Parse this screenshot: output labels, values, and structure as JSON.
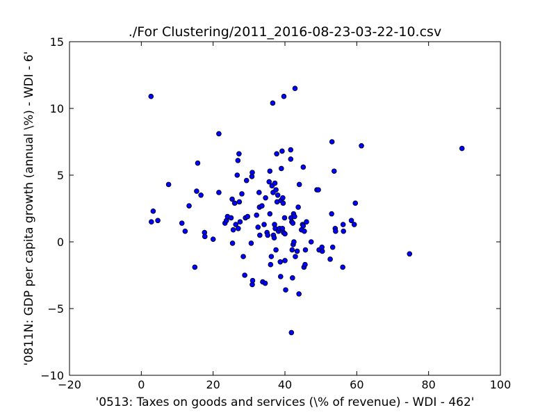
{
  "chart_data": {
    "type": "scatter",
    "title": "./For Clustering/2011_2016-08-23-03-22-10.csv",
    "xlabel": "'0513: Taxes on goods and services  (\\% of revenue) - WDI - 462'",
    "ylabel": "'0811N: GDP per capita growth  (annual \\%) - WDI - 6'",
    "xlim": [
      -20,
      100
    ],
    "ylim": [
      -10,
      15
    ],
    "xticks": [
      -20,
      0,
      20,
      40,
      60,
      80,
      100
    ],
    "xtick_labels": [
      "−20",
      "0",
      "20",
      "40",
      "60",
      "80",
      "100"
    ],
    "yticks": [
      -10,
      -5,
      0,
      5,
      10,
      15
    ],
    "ytick_labels": [
      "−10",
      "−5",
      "0",
      "5",
      "10",
      "15"
    ],
    "grid": false,
    "marker_color": "#0000ff",
    "marker_edge": "#000000",
    "points": [
      [
        2.7,
        10.9
      ],
      [
        2.8,
        1.5
      ],
      [
        3.3,
        2.3
      ],
      [
        4.6,
        1.6
      ],
      [
        7.6,
        4.3
      ],
      [
        11.3,
        1.4
      ],
      [
        12.2,
        0.8
      ],
      [
        13.3,
        2.7
      ],
      [
        14.9,
        -1.9
      ],
      [
        15.4,
        3.8
      ],
      [
        15.7,
        5.9
      ],
      [
        16.6,
        3.5
      ],
      [
        17.6,
        0.7
      ],
      [
        17.7,
        0.4
      ],
      [
        20.0,
        0.2
      ],
      [
        21.6,
        8.1
      ],
      [
        21.6,
        3.7
      ],
      [
        23.3,
        1.4
      ],
      [
        23.7,
        1.6
      ],
      [
        24.0,
        1.9
      ],
      [
        25.0,
        1.8
      ],
      [
        25.3,
        3.2
      ],
      [
        25.4,
        -0.1
      ],
      [
        25.6,
        0.9
      ],
      [
        26.0,
        2.9
      ],
      [
        26.3,
        1.3
      ],
      [
        26.7,
        5.0
      ],
      [
        26.9,
        6.1
      ],
      [
        27.0,
        1.0
      ],
      [
        27.2,
        6.6
      ],
      [
        27.3,
        3.0
      ],
      [
        27.5,
        1.5
      ],
      [
        28.0,
        3.6
      ],
      [
        28.4,
        -1.1
      ],
      [
        28.8,
        -2.5
      ],
      [
        29.0,
        1.8
      ],
      [
        29.3,
        4.6
      ],
      [
        29.6,
        1.9
      ],
      [
        30.6,
        -0.1
      ],
      [
        30.8,
        4.9
      ],
      [
        30.9,
        5.2
      ],
      [
        30.9,
        -3.2
      ],
      [
        31.0,
        -2.9
      ],
      [
        32.1,
        2.0
      ],
      [
        32.5,
        1.1
      ],
      [
        32.8,
        3.7
      ],
      [
        32.9,
        2.6
      ],
      [
        33.0,
        0.5
      ],
      [
        33.6,
        2.7
      ],
      [
        33.8,
        -3.0
      ],
      [
        34.2,
        1.3
      ],
      [
        34.5,
        -3.1
      ],
      [
        34.6,
        3.3
      ],
      [
        35.0,
        0.7
      ],
      [
        35.2,
        0.5
      ],
      [
        35.6,
        4.5
      ],
      [
        35.8,
        5.3
      ],
      [
        35.8,
        2.1
      ],
      [
        36.0,
        -1.7
      ],
      [
        36.2,
        -1.1
      ],
      [
        36.4,
        4.2
      ],
      [
        36.6,
        10.4
      ],
      [
        36.7,
        3.7
      ],
      [
        36.8,
        0.5
      ],
      [
        37.0,
        0.3
      ],
      [
        37.1,
        1.3
      ],
      [
        37.2,
        4.4
      ],
      [
        37.3,
        1.0
      ],
      [
        37.5,
        3.9
      ],
      [
        37.5,
        -0.6
      ],
      [
        37.7,
        6.6
      ],
      [
        37.8,
        3.0
      ],
      [
        38.0,
        3.5
      ],
      [
        38.2,
        0.8
      ],
      [
        38.5,
        1.0
      ],
      [
        38.7,
        -1.5
      ],
      [
        38.8,
        -2.6
      ],
      [
        38.9,
        3.1
      ],
      [
        39.0,
        5.5
      ],
      [
        39.2,
        6.8
      ],
      [
        39.3,
        1.0
      ],
      [
        39.4,
        3.3
      ],
      [
        39.5,
        2.9
      ],
      [
        39.6,
        0.7
      ],
      [
        39.7,
        10.9
      ],
      [
        39.9,
        1.8
      ],
      [
        40.0,
        -1.4
      ],
      [
        40.0,
        0.6
      ],
      [
        40.2,
        -3.6
      ],
      [
        41.6,
        6.9
      ],
      [
        41.6,
        6.2
      ],
      [
        41.7,
        1.8
      ],
      [
        41.8,
        -6.8
      ],
      [
        41.9,
        1.5
      ],
      [
        42.0,
        -0.6
      ],
      [
        42.1,
        -2.7
      ],
      [
        42.2,
        1.4
      ],
      [
        42.3,
        -0.2
      ],
      [
        42.4,
        2.1
      ],
      [
        42.5,
        0.0
      ],
      [
        42.7,
        1.9
      ],
      [
        42.8,
        11.5
      ],
      [
        42.9,
        -1.1
      ],
      [
        43.4,
        -0.7
      ],
      [
        43.7,
        2.6
      ],
      [
        43.9,
        -3.9
      ],
      [
        44.0,
        4.3
      ],
      [
        44.6,
        0.9
      ],
      [
        44.9,
        1.3
      ],
      [
        45.1,
        1.2
      ],
      [
        45.1,
        5.6
      ],
      [
        45.3,
        -1.9
      ],
      [
        45.4,
        0.8
      ],
      [
        45.6,
        -1.7
      ],
      [
        45.7,
        -0.6
      ],
      [
        46.0,
        1.5
      ],
      [
        47.3,
        0.0
      ],
      [
        48.9,
        3.9
      ],
      [
        49.3,
        3.9
      ],
      [
        49.5,
        -0.6
      ],
      [
        50.3,
        -0.4
      ],
      [
        50.4,
        -0.7
      ],
      [
        52.6,
        -1.3
      ],
      [
        53.0,
        2.1
      ],
      [
        53.1,
        7.5
      ],
      [
        53.3,
        -0.4
      ],
      [
        53.7,
        5.3
      ],
      [
        54.0,
        1.0
      ],
      [
        54.1,
        0.8
      ],
      [
        56.1,
        -1.9
      ],
      [
        56.2,
        1.3
      ],
      [
        56.3,
        0.8
      ],
      [
        58.5,
        1.6
      ],
      [
        59.3,
        1.3
      ],
      [
        59.6,
        2.9
      ],
      [
        61.3,
        7.2
      ],
      [
        74.7,
        -0.9
      ],
      [
        89.3,
        7.0
      ]
    ]
  }
}
